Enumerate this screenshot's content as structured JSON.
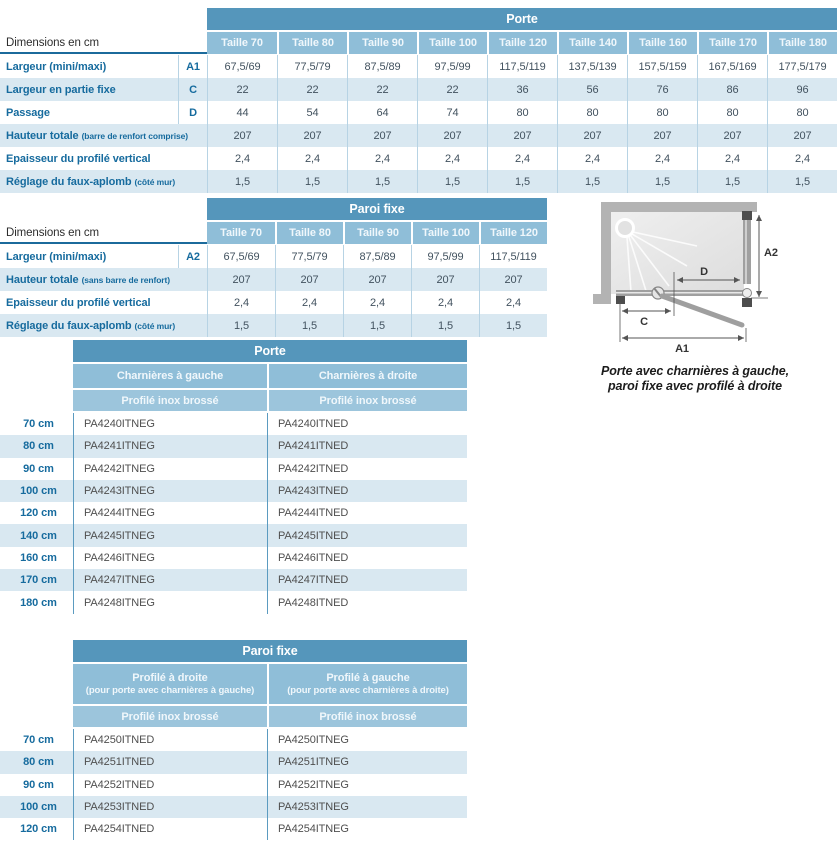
{
  "labels": {
    "dimensions": "Dimensions en cm"
  },
  "colors": {
    "header_blue": "#5596BB",
    "subheader_blue": "#8FBED8",
    "finish_blue": "#9CC5DC",
    "stripe_blue": "#D9E8F1",
    "label_blue": "#166B9E",
    "value_slate": "#42525F",
    "rule_blue": "#1B6A9B",
    "body_separator_blue": "#5B9BC0"
  },
  "porte_dims": {
    "title": "Porte",
    "columns": [
      "Taille 70",
      "Taille 80",
      "Taille 90",
      "Taille 100",
      "Taille 120",
      "Taille 140",
      "Taille 160",
      "Taille 170",
      "Taille 180"
    ],
    "rows": [
      {
        "label": "Largeur (mini/maxi)",
        "note": "",
        "code": "A1",
        "values": [
          "67,5/69",
          "77,5/79",
          "87,5/89",
          "97,5/99",
          "117,5/119",
          "137,5/139",
          "157,5/159",
          "167,5/169",
          "177,5/179"
        ]
      },
      {
        "label": "Largeur en partie fixe",
        "note": "",
        "code": "C",
        "values": [
          "22",
          "22",
          "22",
          "22",
          "36",
          "56",
          "76",
          "86",
          "96"
        ]
      },
      {
        "label": "Passage",
        "note": "",
        "code": "D",
        "values": [
          "44",
          "54",
          "64",
          "74",
          "80",
          "80",
          "80",
          "80",
          "80"
        ]
      },
      {
        "label": "Hauteur totale",
        "note": "(barre de renfort comprise)",
        "code": "",
        "values": [
          "207",
          "207",
          "207",
          "207",
          "207",
          "207",
          "207",
          "207",
          "207"
        ]
      },
      {
        "label": "Epaisseur du profilé vertical",
        "note": "",
        "code": "",
        "values": [
          "2,4",
          "2,4",
          "2,4",
          "2,4",
          "2,4",
          "2,4",
          "2,4",
          "2,4",
          "2,4"
        ]
      },
      {
        "label": "Réglage du faux-aplomb",
        "note": "(côté mur)",
        "code": "",
        "values": [
          "1,5",
          "1,5",
          "1,5",
          "1,5",
          "1,5",
          "1,5",
          "1,5",
          "1,5",
          "1,5"
        ]
      }
    ]
  },
  "paroi_dims": {
    "title": "Paroi fixe",
    "columns": [
      "Taille 70",
      "Taille 80",
      "Taille 90",
      "Taille 100",
      "Taille 120"
    ],
    "rows": [
      {
        "label": "Largeur (mini/maxi)",
        "note": "",
        "code": "A2",
        "values": [
          "67,5/69",
          "77,5/79",
          "87,5/89",
          "97,5/99",
          "117,5/119"
        ]
      },
      {
        "label": "Hauteur totale",
        "note": "(sans barre de renfort)",
        "code": "",
        "values": [
          "207",
          "207",
          "207",
          "207",
          "207"
        ]
      },
      {
        "label": "Epaisseur du profilé vertical",
        "note": "",
        "code": "",
        "values": [
          "2,4",
          "2,4",
          "2,4",
          "2,4",
          "2,4"
        ]
      },
      {
        "label": "Réglage du faux-aplomb",
        "note": "(côté mur)",
        "code": "",
        "values": [
          "1,5",
          "1,5",
          "1,5",
          "1,5",
          "1,5"
        ]
      }
    ]
  },
  "porte_codes": {
    "title": "Porte",
    "columns": [
      {
        "header": "Charnières à gauche",
        "note": "",
        "finish": "Profilé inox brossé"
      },
      {
        "header": "Charnières à droite",
        "note": "",
        "finish": "Profilé inox brossé"
      }
    ],
    "rows": [
      {
        "size": "70 cm",
        "codes": [
          "PA4240ITNEG",
          "PA4240ITNED"
        ]
      },
      {
        "size": "80 cm",
        "codes": [
          "PA4241ITNEG",
          "PA4241ITNED"
        ]
      },
      {
        "size": "90 cm",
        "codes": [
          "PA4242ITNEG",
          "PA4242ITNED"
        ]
      },
      {
        "size": "100 cm",
        "codes": [
          "PA4243ITNEG",
          "PA4243ITNED"
        ]
      },
      {
        "size": "120 cm",
        "codes": [
          "PA4244ITNEG",
          "PA4244ITNED"
        ]
      },
      {
        "size": "140 cm",
        "codes": [
          "PA4245ITNEG",
          "PA4245ITNED"
        ]
      },
      {
        "size": "160 cm",
        "codes": [
          "PA4246ITNEG",
          "PA4246ITNED"
        ]
      },
      {
        "size": "170 cm",
        "codes": [
          "PA4247ITNEG",
          "PA4247ITNED"
        ]
      },
      {
        "size": "180 cm",
        "codes": [
          "PA4248ITNEG",
          "PA4248ITNED"
        ]
      }
    ]
  },
  "paroi_codes": {
    "title": "Paroi fixe",
    "columns": [
      {
        "header": "Profilé à droite",
        "note": "(pour porte avec charnières à gauche)",
        "finish": "Profilé inox brossé"
      },
      {
        "header": "Profilé à gauche",
        "note": "(pour porte avec charnières à droite)",
        "finish": "Profilé inox brossé"
      }
    ],
    "rows": [
      {
        "size": "70 cm",
        "codes": [
          "PA4250ITNED",
          "PA4250ITNEG"
        ]
      },
      {
        "size": "80 cm",
        "codes": [
          "PA4251ITNED",
          "PA4251ITNEG"
        ]
      },
      {
        "size": "90 cm",
        "codes": [
          "PA4252ITNED",
          "PA4252ITNEG"
        ]
      },
      {
        "size": "100 cm",
        "codes": [
          "PA4253ITNED",
          "PA4253ITNEG"
        ]
      },
      {
        "size": "120 cm",
        "codes": [
          "PA4254ITNED",
          "PA4254ITNEG"
        ]
      }
    ]
  },
  "diagram": {
    "dim_labels": {
      "a1": "A1",
      "a2": "A2",
      "c": "C",
      "d": "D"
    },
    "caption_line1": "Porte avec charnières à gauche,",
    "caption_line2": "paroi fixe avec profilé à droite"
  }
}
